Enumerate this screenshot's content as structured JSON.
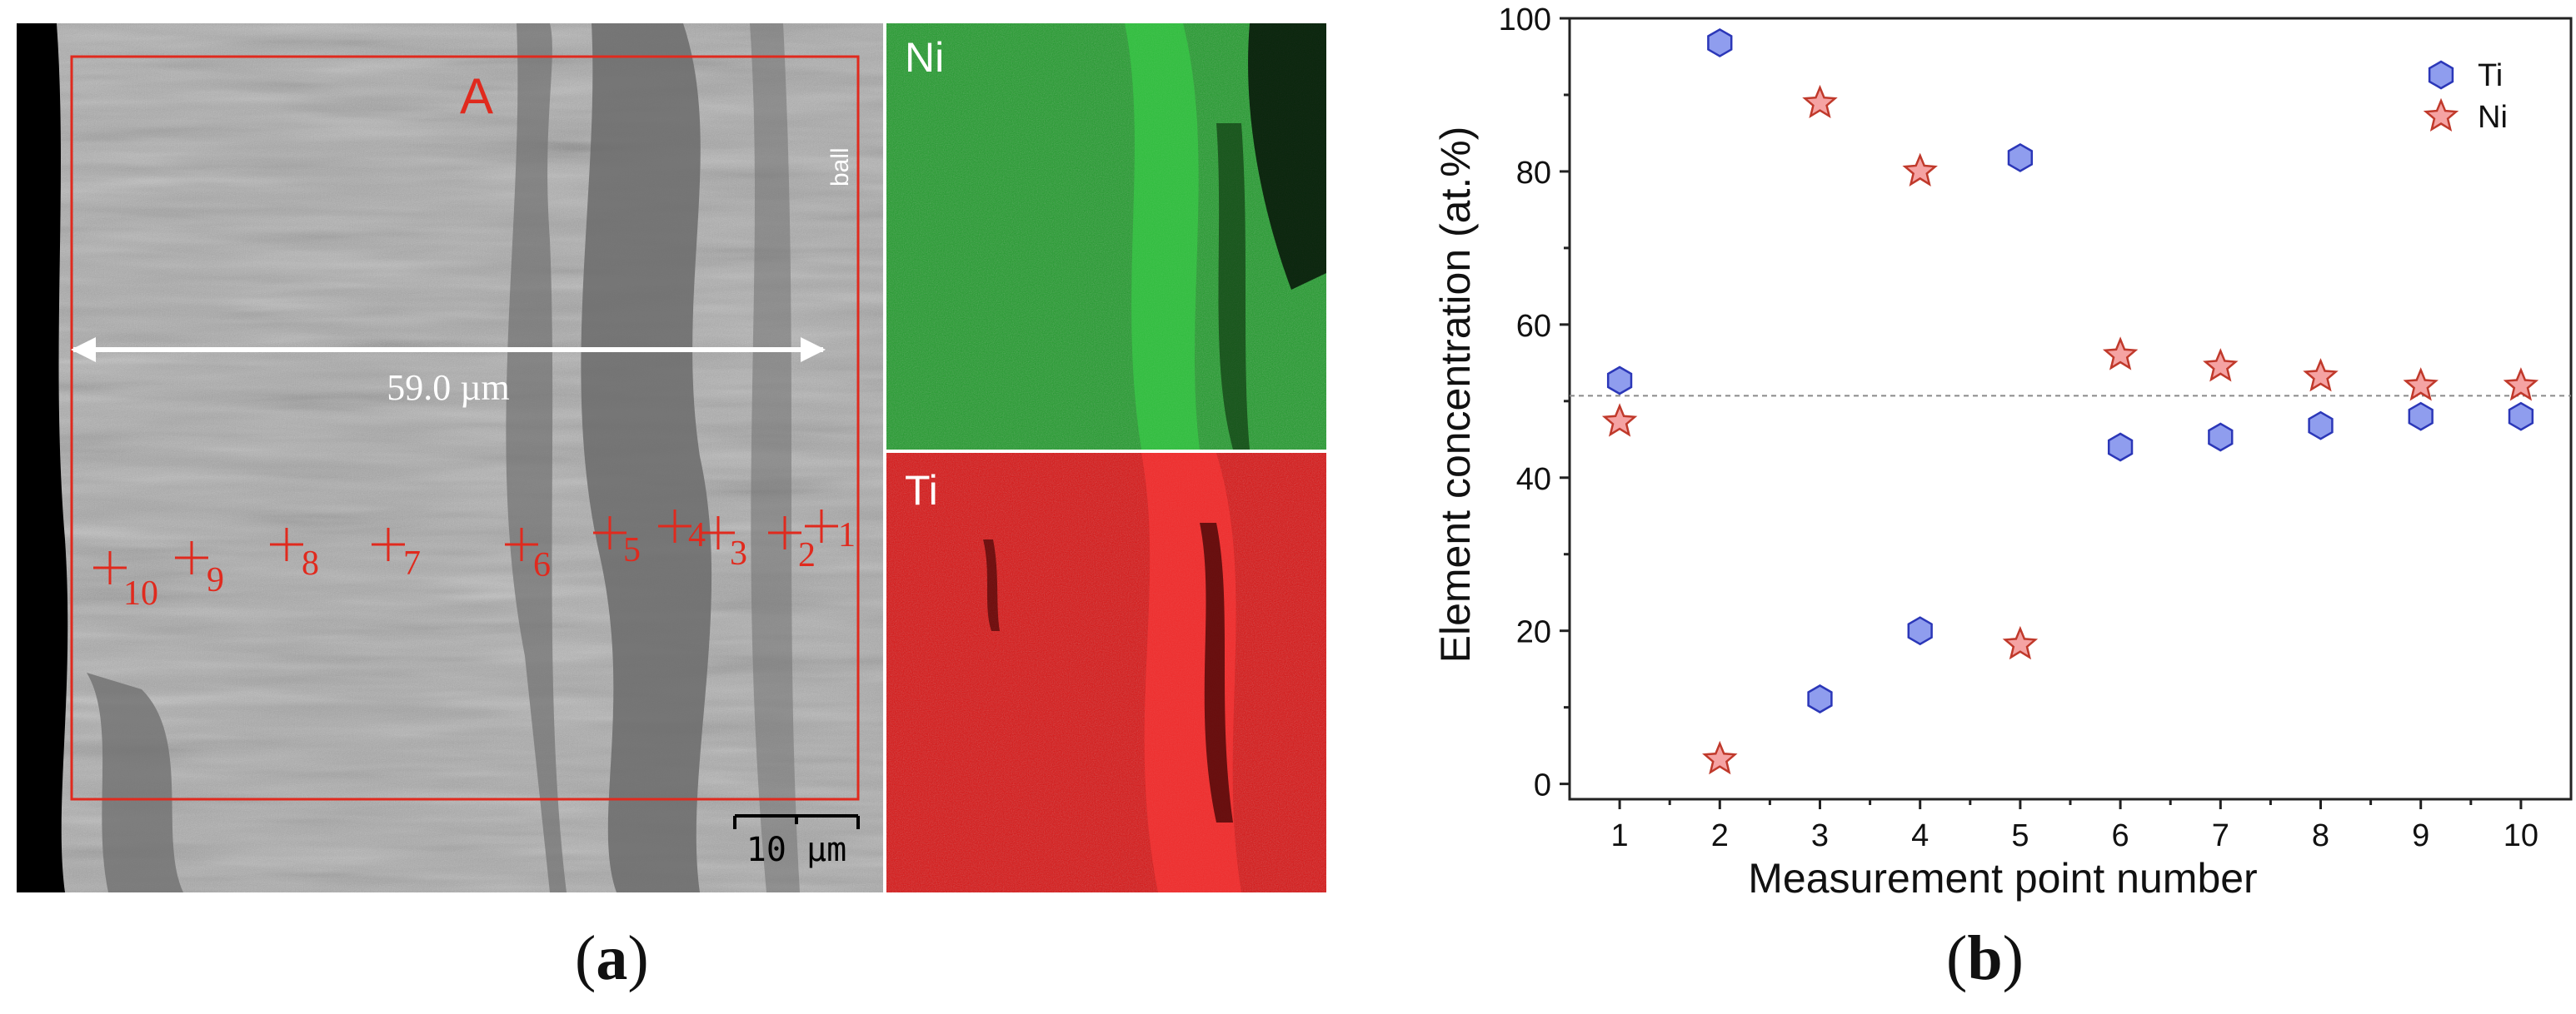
{
  "panel_a": {
    "caption_open": "(",
    "caption_letter": "a",
    "caption_close": ")",
    "region_label": "A",
    "side_label": "ball",
    "width_label": "59.0 µm",
    "scalebar_label": "10 µm",
    "map_ni_label": "Ni",
    "map_ti_label": "Ti",
    "points": [
      "1",
      "2",
      "3",
      "4",
      "5",
      "6",
      "7",
      "8",
      "9",
      "10"
    ],
    "colors": {
      "marker": "#e02a1e",
      "arrow": "#ffffff",
      "ni_map": "#1f9a2a",
      "ti_map": "#d81010"
    }
  },
  "panel_b": {
    "caption_open": "(",
    "caption_letter": "b",
    "caption_close": ")"
  },
  "chart_data": {
    "type": "scatter",
    "title": "",
    "xlabel": "Measurement point number",
    "ylabel": "Element concentration (at.%)",
    "x": [
      1,
      2,
      3,
      4,
      5,
      6,
      7,
      8,
      9,
      10
    ],
    "xlim": [
      0.5,
      10.5
    ],
    "ylim": [
      -2,
      100
    ],
    "xticks": [
      1,
      2,
      3,
      4,
      5,
      6,
      7,
      8,
      9,
      10
    ],
    "yticks": [
      0,
      20,
      40,
      60,
      80,
      100
    ],
    "reference_line": 50.7,
    "legend_position": "top-right",
    "series": [
      {
        "name": "Ti",
        "marker": "hexagon",
        "fill": "#8f9dee",
        "stroke": "#2b37b8",
        "values": [
          52.7,
          96.8,
          11.1,
          20.0,
          81.8,
          44.0,
          45.3,
          46.8,
          48.0,
          48.0
        ]
      },
      {
        "name": "Ni",
        "marker": "star",
        "fill": "#f5a3a3",
        "stroke": "#c0392b",
        "values": [
          47.3,
          3.2,
          88.9,
          80.0,
          18.2,
          56.0,
          54.5,
          53.2,
          52.0,
          52.0
        ]
      }
    ]
  }
}
